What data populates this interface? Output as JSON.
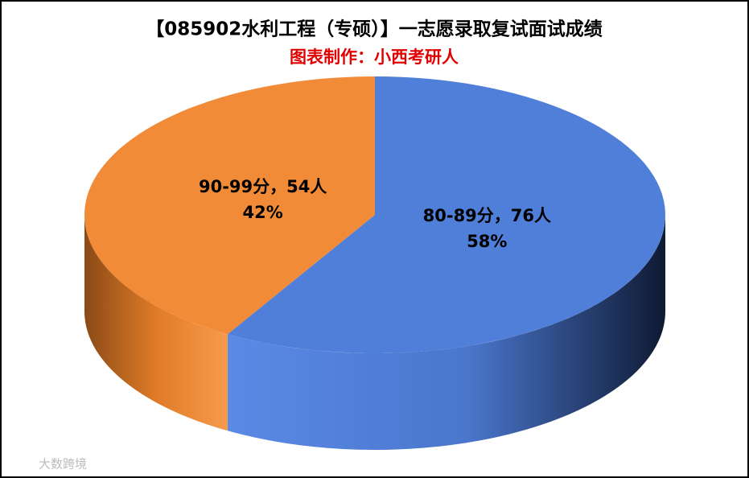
{
  "chart_data": {
    "type": "pie3d",
    "title": "【085902水利工程（专硕）】一志愿录取复试面试成绩",
    "subtitle": "图表制作：小西考研人",
    "values": [
      76,
      54
    ],
    "value_labels": [
      "80-89分，76人",
      "90-99分，54人"
    ],
    "percentages": [
      58,
      42
    ],
    "percent_labels": [
      "58%",
      "42%"
    ],
    "colors": [
      "#4f7fd8",
      "#f28b38"
    ],
    "watermark": "大数跨境"
  }
}
